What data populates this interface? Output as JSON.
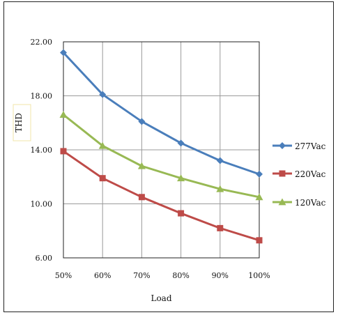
{
  "chart_data": {
    "type": "line",
    "title": "",
    "xlabel": "Load",
    "ylabel": "THD",
    "categories": [
      "50%",
      "60%",
      "70%",
      "80%",
      "90%",
      "100%"
    ],
    "ylim": [
      6,
      22
    ],
    "yticks": [
      6,
      10,
      14,
      18,
      22
    ],
    "ytick_labels": [
      "6.00",
      "10.00",
      "14.00",
      "18.00",
      "22.00"
    ],
    "grid": true,
    "legend_position": "right",
    "series": [
      {
        "name": "277Vac",
        "values": [
          21.2,
          18.1,
          16.1,
          14.5,
          13.2,
          12.2
        ],
        "color": "#4A7EBB",
        "marker": "diamond"
      },
      {
        "name": "220Vac",
        "values": [
          13.9,
          11.9,
          10.5,
          9.3,
          8.2,
          7.3
        ],
        "color": "#BE4B48",
        "marker": "square"
      },
      {
        "name": "120Vac",
        "values": [
          16.6,
          14.3,
          12.8,
          11.9,
          11.1,
          10.5
        ],
        "color": "#98B954",
        "marker": "triangle"
      }
    ]
  }
}
